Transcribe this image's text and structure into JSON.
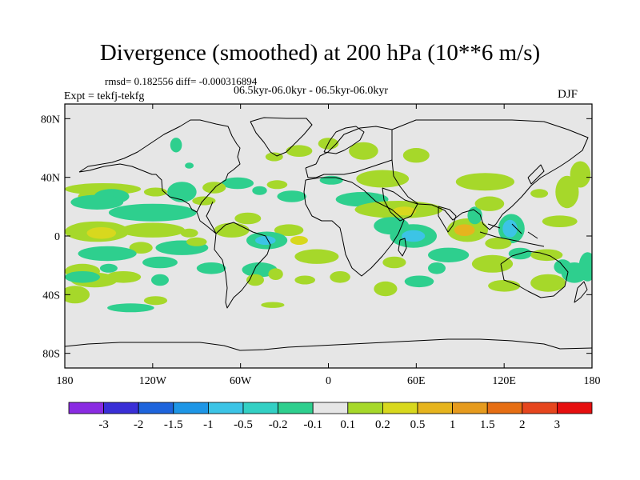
{
  "title": "Divergence (smoothed) at 200 hPa (10**6 m/s)",
  "stats": "rmsd= 0.182556 diff= -0.000316894",
  "period": "06.5kyr-06.0kyr - 06.5kyr-06.0kyr",
  "experiment": "Expt = tekfj-tekfg",
  "season": "DJF",
  "colors": {
    "frame": "#000000",
    "background_band": "#e6e6e6",
    "coastline": "#000000"
  },
  "map": {
    "projection": "cylindrical-equidistant",
    "lon_range": [
      -180,
      180
    ],
    "lat_range": [
      -90,
      90
    ],
    "x_ticks": [
      {
        "value": -180,
        "label": "180"
      },
      {
        "value": -120,
        "label": "120W"
      },
      {
        "value": -60,
        "label": "60W"
      },
      {
        "value": 0,
        "label": "0"
      },
      {
        "value": 60,
        "label": "60E"
      },
      {
        "value": 120,
        "label": "120E"
      },
      {
        "value": 180,
        "label": "180"
      }
    ],
    "y_ticks": [
      {
        "value": 80,
        "label": "80N"
      },
      {
        "value": 40,
        "label": "40N"
      },
      {
        "value": 0,
        "label": "0"
      },
      {
        "value": -40,
        "label": "40S"
      },
      {
        "value": -80,
        "label": "80S"
      }
    ]
  },
  "colorbar": {
    "colors": [
      "#8a2be2",
      "#3a2fd6",
      "#1e64dc",
      "#1e96e6",
      "#3cc4e6",
      "#33d0c4",
      "#2ecf8e",
      "#e6e6e6",
      "#a6d82a",
      "#d8d81e",
      "#e6b41e",
      "#e69b1e",
      "#e66e14",
      "#e6461e",
      "#e60f0f"
    ],
    "labels": [
      "-3",
      "-2",
      "-1.5",
      "-1",
      "-0.5",
      "-0.2",
      "-0.1",
      "0.1",
      "0.2",
      "0.5",
      "1",
      "1.5",
      "2",
      "3"
    ]
  },
  "field_anomalies": [
    {
      "lon": 0,
      "lat": 63,
      "rlon": 7,
      "rlat": 4,
      "level": 1
    },
    {
      "lon": -37,
      "lat": 54,
      "rlon": 6,
      "rlat": 3,
      "level": 1
    },
    {
      "lon": -95,
      "lat": 48,
      "rlon": 3,
      "rlat": 2,
      "level": -1
    },
    {
      "lon": -104,
      "lat": 62,
      "rlon": 4,
      "rlat": 5,
      "level": -1
    },
    {
      "lon": -20,
      "lat": 58,
      "rlon": 9,
      "rlat": 4,
      "level": 1
    },
    {
      "lon": 24,
      "lat": 58,
      "rlon": 10,
      "rlat": 6,
      "level": 1
    },
    {
      "lon": 60,
      "lat": 55,
      "rlon": 9,
      "rlat": 5,
      "level": 1
    },
    {
      "lon": 37,
      "lat": 39,
      "rlon": 18,
      "rlat": 6,
      "level": 1
    },
    {
      "lon": 2,
      "lat": 38,
      "rlon": 8,
      "rlat": 3,
      "level": -1
    },
    {
      "lon": 23,
      "lat": 25,
      "rlon": 18,
      "rlat": 5,
      "level": -1
    },
    {
      "lon": 48,
      "lat": 18,
      "rlon": 30,
      "rlat": 6,
      "level": 1
    },
    {
      "lon": 52,
      "lat": 17,
      "rlon": 8,
      "rlat": 3,
      "level": 2
    },
    {
      "lon": 43,
      "lat": 7,
      "rlon": 12,
      "rlat": 6,
      "level": -1
    },
    {
      "lon": 58,
      "lat": 0,
      "rlon": 16,
      "rlat": 8,
      "level": -1
    },
    {
      "lon": 58,
      "lat": 0,
      "rlon": 8,
      "rlat": 4,
      "level": -3
    },
    {
      "lon": 95,
      "lat": 4,
      "rlon": 14,
      "rlat": 8,
      "level": 1
    },
    {
      "lon": 93,
      "lat": 4,
      "rlon": 7,
      "rlat": 4,
      "level": 3
    },
    {
      "lon": 100,
      "lat": 14,
      "rlon": 5,
      "rlat": 6,
      "level": -1
    },
    {
      "lon": 125,
      "lat": 5,
      "rlon": 9,
      "rlat": 10,
      "level": -1
    },
    {
      "lon": 124,
      "lat": 5,
      "rlon": 5,
      "rlat": 6,
      "level": -3
    },
    {
      "lon": 110,
      "lat": 22,
      "rlon": 10,
      "rlat": 5,
      "level": 1
    },
    {
      "lon": 107,
      "lat": 37,
      "rlon": 20,
      "rlat": 6,
      "level": 1
    },
    {
      "lon": 144,
      "lat": 29,
      "rlon": 6,
      "rlat": 3,
      "level": 1
    },
    {
      "lon": 163,
      "lat": 30,
      "rlon": 8,
      "rlat": 11,
      "level": 1
    },
    {
      "lon": 172,
      "lat": 42,
      "rlon": 7,
      "rlat": 9,
      "level": 1
    },
    {
      "lon": 158,
      "lat": 10,
      "rlon": 12,
      "rlat": 4,
      "level": 1
    },
    {
      "lon": 116,
      "lat": -5,
      "rlon": 9,
      "rlat": 4,
      "level": 1
    },
    {
      "lon": 112,
      "lat": -19,
      "rlon": 14,
      "rlat": 6,
      "level": 1
    },
    {
      "lon": 131,
      "lat": -12,
      "rlon": 8,
      "rlat": 4,
      "level": -1
    },
    {
      "lon": 120,
      "lat": -34,
      "rlon": 11,
      "rlat": 4,
      "level": 1
    },
    {
      "lon": 150,
      "lat": -32,
      "rlon": 12,
      "rlat": 6,
      "level": 1
    },
    {
      "lon": 149,
      "lat": -13,
      "rlon": 11,
      "rlat": 4,
      "level": 1
    },
    {
      "lon": 168,
      "lat": -25,
      "rlon": 9,
      "rlat": 7,
      "level": -1
    },
    {
      "lon": 160,
      "lat": -21,
      "rlon": 6,
      "rlat": 5,
      "level": -1
    },
    {
      "lon": 177,
      "lat": -21,
      "rlon": 6,
      "rlat": 10,
      "level": -1
    },
    {
      "lon": 39,
      "lat": -36,
      "rlon": 8,
      "rlat": 5,
      "level": 1
    },
    {
      "lon": 45,
      "lat": -18,
      "rlon": 8,
      "rlat": 4,
      "level": 1
    },
    {
      "lon": 82,
      "lat": -13,
      "rlon": 14,
      "rlat": 5,
      "level": -1
    },
    {
      "lon": 74,
      "lat": -22,
      "rlon": 6,
      "rlat": 4,
      "level": -1
    },
    {
      "lon": 62,
      "lat": -31,
      "rlon": 10,
      "rlat": 4,
      "level": -1
    },
    {
      "lon": 8,
      "lat": -28,
      "rlon": 7,
      "rlat": 4,
      "level": 1
    },
    {
      "lon": -8,
      "lat": -14,
      "rlon": 15,
      "rlat": 5,
      "level": 1
    },
    {
      "lon": -27,
      "lat": 4,
      "rlon": 10,
      "rlat": 4,
      "level": 1
    },
    {
      "lon": -42,
      "lat": -3,
      "rlon": 14,
      "rlat": 6,
      "level": -1
    },
    {
      "lon": -43,
      "lat": -3,
      "rlon": 7,
      "rlat": 3,
      "level": -3
    },
    {
      "lon": -20,
      "lat": -3,
      "rlon": 6,
      "rlat": 3,
      "level": 2
    },
    {
      "lon": -55,
      "lat": 12,
      "rlon": 9,
      "rlat": 4,
      "level": 1
    },
    {
      "lon": -66,
      "lat": 4,
      "rlon": 12,
      "rlat": 5,
      "level": 1
    },
    {
      "lon": -25,
      "lat": 27,
      "rlon": 10,
      "rlat": 4,
      "level": -1
    },
    {
      "lon": -47,
      "lat": 31,
      "rlon": 5,
      "rlat": 3,
      "level": -1
    },
    {
      "lon": -62,
      "lat": 36,
      "rlon": 11,
      "rlat": 4,
      "level": -1
    },
    {
      "lon": -100,
      "lat": 30,
      "rlon": 10,
      "rlat": 7,
      "level": -1
    },
    {
      "lon": -120,
      "lat": 16,
      "rlon": 30,
      "rlat": 6,
      "level": -1
    },
    {
      "lon": -154,
      "lat": 32,
      "rlon": 26,
      "rlat": 4,
      "level": 1
    },
    {
      "lon": -160,
      "lat": 27,
      "rlon": 11,
      "rlat": 4,
      "level": 1
    },
    {
      "lon": -148,
      "lat": 27,
      "rlon": 12,
      "rlat": 5,
      "level": -1
    },
    {
      "lon": -158,
      "lat": 23,
      "rlon": 18,
      "rlat": 5,
      "level": -1
    },
    {
      "lon": -120,
      "lat": 4,
      "rlon": 22,
      "rlat": 5,
      "level": 1
    },
    {
      "lon": -158,
      "lat": 3,
      "rlon": 22,
      "rlat": 7,
      "level": 1
    },
    {
      "lon": -155,
      "lat": 2,
      "rlon": 10,
      "rlat": 4,
      "level": 2
    },
    {
      "lon": -100,
      "lat": -8,
      "rlon": 18,
      "rlat": 5,
      "level": -1
    },
    {
      "lon": -115,
      "lat": -18,
      "rlon": 12,
      "rlat": 4,
      "level": -1
    },
    {
      "lon": -128,
      "lat": -8,
      "rlon": 8,
      "rlat": 4,
      "level": 1
    },
    {
      "lon": -80,
      "lat": -22,
      "rlon": 10,
      "rlat": 4,
      "level": -1
    },
    {
      "lon": -47,
      "lat": -23,
      "rlon": 12,
      "rlat": 5,
      "level": -1
    },
    {
      "lon": -50,
      "lat": -30,
      "rlon": 6,
      "rlat": 4,
      "level": 1
    },
    {
      "lon": -36,
      "lat": -26,
      "rlon": 5,
      "rlat": 4,
      "level": 1
    },
    {
      "lon": -16,
      "lat": -30,
      "rlon": 7,
      "rlat": 3,
      "level": 1
    },
    {
      "lon": -151,
      "lat": -12,
      "rlon": 20,
      "rlat": 5,
      "level": -1
    },
    {
      "lon": -168,
      "lat": -24,
      "rlon": 12,
      "rlat": 5,
      "level": 1
    },
    {
      "lon": -160,
      "lat": -30,
      "rlon": 16,
      "rlat": 5,
      "level": 1
    },
    {
      "lon": -140,
      "lat": -28,
      "rlon": 12,
      "rlat": 4,
      "level": 1
    },
    {
      "lon": -168,
      "lat": -28,
      "rlon": 12,
      "rlat": 4,
      "level": -1
    },
    {
      "lon": -150,
      "lat": -22,
      "rlon": 6,
      "rlat": 3,
      "level": -1
    },
    {
      "lon": -115,
      "lat": -30,
      "rlon": 6,
      "rlat": 4,
      "level": -1
    },
    {
      "lon": -118,
      "lat": -44,
      "rlon": 8,
      "rlat": 3,
      "level": 1
    },
    {
      "lon": -135,
      "lat": -49,
      "rlon": 16,
      "rlat": 3,
      "level": -1
    },
    {
      "lon": -173,
      "lat": -40,
      "rlon": 10,
      "rlat": 6,
      "level": 1
    },
    {
      "lon": -95,
      "lat": 2,
      "rlon": 6,
      "rlat": 3,
      "level": 1
    },
    {
      "lon": -35,
      "lat": 35,
      "rlon": 7,
      "rlat": 3,
      "level": 1
    },
    {
      "lon": -78,
      "lat": 33,
      "rlon": 8,
      "rlat": 4,
      "level": 1
    },
    {
      "lon": -118,
      "lat": 30,
      "rlon": 8,
      "rlat": 3,
      "level": 1
    },
    {
      "lon": -85,
      "lat": 24,
      "rlon": 8,
      "rlat": 3,
      "level": 1
    },
    {
      "lon": -38,
      "lat": -47,
      "rlon": 8,
      "rlat": 2,
      "level": 1
    },
    {
      "lon": -90,
      "lat": -4,
      "rlon": 7,
      "rlat": 3,
      "level": 1
    }
  ]
}
